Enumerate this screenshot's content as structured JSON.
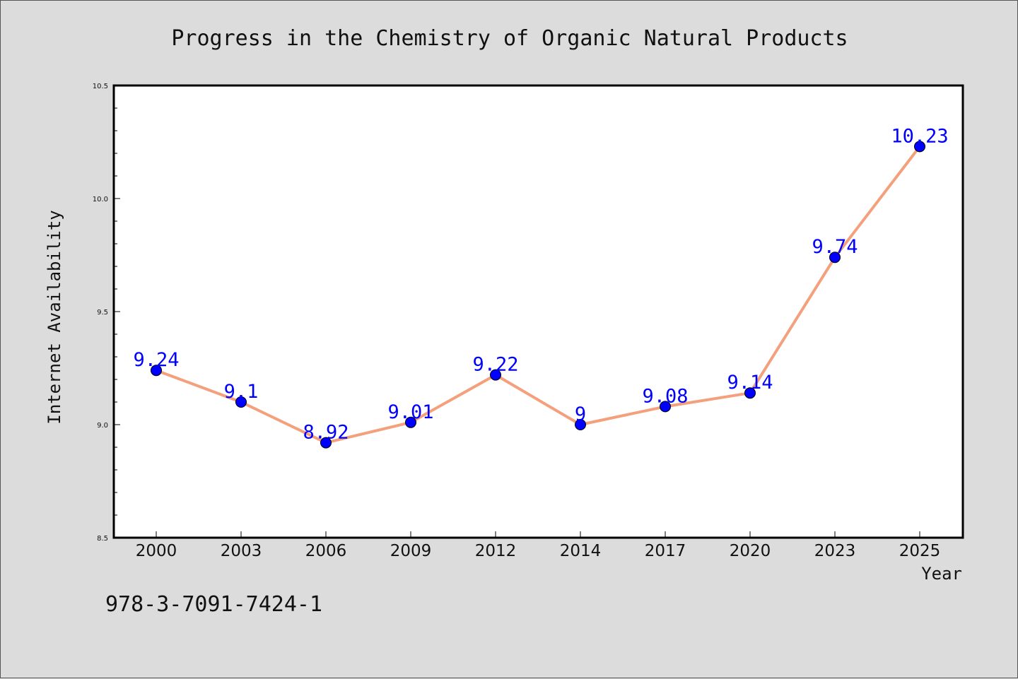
{
  "chart_data": {
    "type": "line",
    "title": "Progress in the Chemistry of Organic Natural Products",
    "xlabel": "Year",
    "ylabel": "Internet Availability",
    "categories": [
      "2000",
      "2003",
      "2006",
      "2009",
      "2012",
      "2014",
      "2017",
      "2020",
      "2023",
      "2025"
    ],
    "values": [
      9.24,
      9.1,
      8.92,
      9.01,
      9.22,
      9.0,
      9.08,
      9.14,
      9.74,
      10.23
    ],
    "data_labels": [
      "9.24",
      "9.1",
      "8.92",
      "9.01",
      "9.22",
      "9",
      "9.08",
      "9.14",
      "9.74",
      "10.23"
    ],
    "ylim": [
      8.5,
      10.5
    ],
    "yticks": [
      "8.5",
      "9.0",
      "9.5",
      "10.0",
      "10.5"
    ],
    "grid": false,
    "line_color": "#f4a07c",
    "marker_color": "#0000ff",
    "label_color": "#0000ff"
  },
  "footer": {
    "isbn": "978-3-7091-7424-1"
  }
}
